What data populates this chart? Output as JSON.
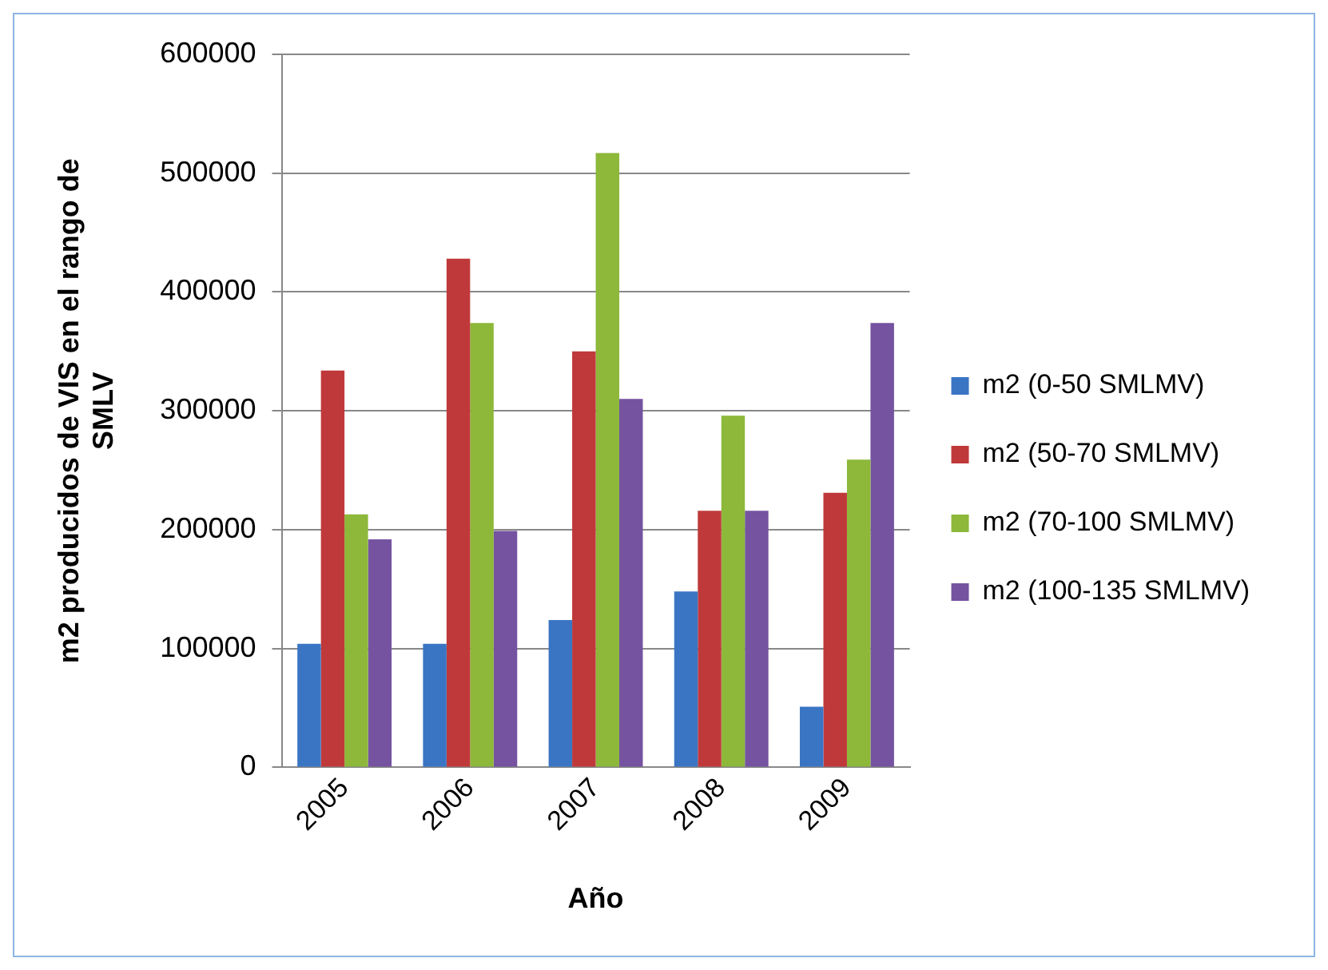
{
  "chart_data": {
    "type": "bar",
    "xlabel": "Año",
    "ylabel": "m2 producidos de VIS en el rango de SMLV",
    "categories": [
      "2005",
      "2006",
      "2007",
      "2008",
      "2009"
    ],
    "series": [
      {
        "name": "m2 (0-50 SMLMV)",
        "color": "#3a75c4",
        "values": [
          104000,
          104000,
          124000,
          148000,
          51000
        ]
      },
      {
        "name": "m2 (50-70 SMLMV)",
        "color": "#c0393a",
        "values": [
          334000,
          428000,
          350000,
          216000,
          231000
        ]
      },
      {
        "name": "m2 (70-100 SMLMV)",
        "color": "#8db83a",
        "values": [
          213000,
          374000,
          517000,
          296000,
          259000
        ]
      },
      {
        "name": "m2 (100-135 SMLMV)",
        "color": "#7553a0",
        "values": [
          192000,
          199000,
          310000,
          216000,
          374000
        ]
      }
    ],
    "ylim": [
      0,
      600000
    ],
    "yticks": [
      0,
      100000,
      200000,
      300000,
      400000,
      500000,
      600000
    ],
    "grid": "y",
    "legend": "right"
  }
}
